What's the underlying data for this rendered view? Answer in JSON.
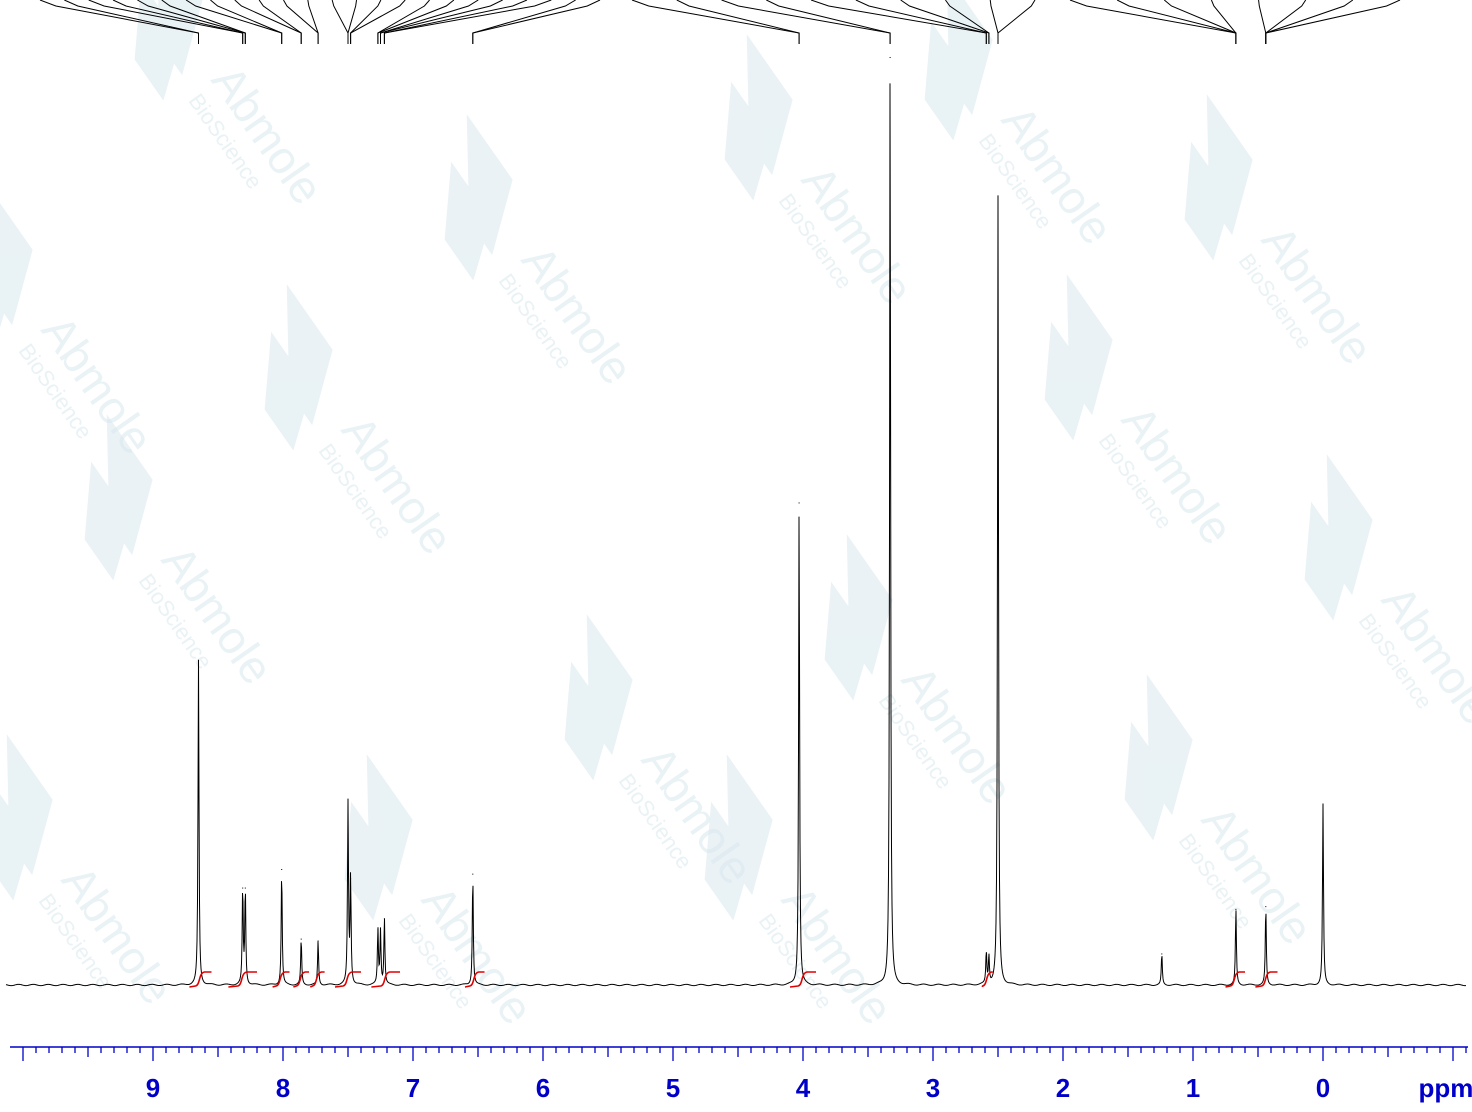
{
  "colors": {
    "spectrum": "#000000",
    "integral": "#e00000",
    "axis": "#0000c8",
    "watermark": "#d8e8ee"
  },
  "watermark": {
    "brand": "Abmole",
    "sub": "BioScience"
  },
  "chart_data": {
    "type": "line",
    "title": "",
    "xlabel": "ppm",
    "ylabel": "",
    "xlim": [
      10.0,
      -1.1
    ],
    "x_reversed": true,
    "xticks": [
      9,
      8,
      7,
      6,
      5,
      4,
      3,
      2,
      1,
      0
    ],
    "minor_tick_step": 0.1,
    "grid": false,
    "legend": "none",
    "peaks": [
      {
        "ppm": 8.65,
        "intensity": 0.35
      },
      {
        "ppm": 8.31,
        "intensity": 0.105
      },
      {
        "ppm": 8.29,
        "intensity": 0.105
      },
      {
        "ppm": 8.01,
        "intensity": 0.125
      },
      {
        "ppm": 7.86,
        "intensity": 0.05
      },
      {
        "ppm": 7.73,
        "intensity": 0.048
      },
      {
        "ppm": 7.5,
        "intensity": 0.195
      },
      {
        "ppm": 7.48,
        "intensity": 0.115
      },
      {
        "ppm": 7.27,
        "intensity": 0.06
      },
      {
        "ppm": 7.25,
        "intensity": 0.058
      },
      {
        "ppm": 7.22,
        "intensity": 0.072
      },
      {
        "ppm": 6.54,
        "intensity": 0.12
      },
      {
        "ppm": 4.03,
        "intensity": 0.52
      },
      {
        "ppm": 3.33,
        "intensity": 1.0
      },
      {
        "ppm": 2.59,
        "intensity": 0.035
      },
      {
        "ppm": 2.57,
        "intensity": 0.03
      },
      {
        "ppm": 2.5,
        "intensity": 0.85
      },
      {
        "ppm": 1.24,
        "intensity": 0.034
      },
      {
        "ppm": 0.67,
        "intensity": 0.082
      },
      {
        "ppm": 0.44,
        "intensity": 0.085
      },
      {
        "ppm": 0.0,
        "intensity": 0.195
      }
    ],
    "integrals": [
      {
        "from": 8.72,
        "to": 8.55
      },
      {
        "from": 8.42,
        "to": 8.2
      },
      {
        "from": 8.08,
        "to": 7.95
      },
      {
        "from": 7.92,
        "to": 7.8
      },
      {
        "from": 7.79,
        "to": 7.68
      },
      {
        "from": 7.6,
        "to": 7.4
      },
      {
        "from": 7.32,
        "to": 7.1
      },
      {
        "from": 6.6,
        "to": 6.45
      },
      {
        "from": 4.1,
        "to": 3.9
      },
      {
        "from": 2.62,
        "to": 2.54
      },
      {
        "from": 0.75,
        "to": 0.6
      },
      {
        "from": 0.52,
        "to": 0.35
      }
    ],
    "peak_label_clusters": [
      {
        "from": 8.65,
        "to": 6.54
      },
      {
        "from": 4.03,
        "to": 2.5
      },
      {
        "from": 0.68,
        "to": 0.43
      }
    ]
  }
}
